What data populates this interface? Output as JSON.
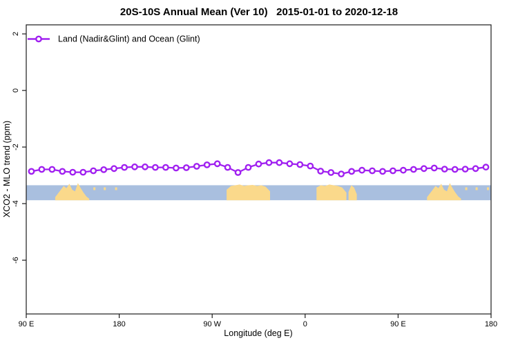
{
  "chart_data": {
    "type": "line",
    "title": "20S-10S Annual Mean (Ver 10)   2015-01-01 to 2020-12-18",
    "xlabel": "Longitude (deg E)",
    "ylabel": "XCO2 - MLO trend (ppm)",
    "grid": false,
    "xlim": [
      90,
      540
    ],
    "ylim": [
      -7.9,
      2.32
    ],
    "x_axis": {
      "note": "longitude wraps eastward from 90E around the globe to 180",
      "ticks": [
        {
          "value": 90,
          "label": "90 E"
        },
        {
          "value": 180,
          "label": "180"
        },
        {
          "value": 270,
          "label": "90 W"
        },
        {
          "value": 360,
          "label": "0"
        },
        {
          "value": 450,
          "label": "90 E"
        },
        {
          "value": 540,
          "label": "180"
        }
      ]
    },
    "y_axis": {
      "ticks": [
        {
          "value": 2,
          "label": "2"
        },
        {
          "value": 0,
          "label": "0"
        },
        {
          "value": -2,
          "label": "-2"
        },
        {
          "value": -4,
          "label": "-4"
        },
        {
          "value": -6,
          "label": "-6"
        }
      ]
    },
    "legend": {
      "label": "Land (Nadir&Glint) and Ocean (Glint)",
      "position": "top-left"
    },
    "series": [
      {
        "name": "Land (Nadir&Glint) and Ocean (Glint)",
        "color": "#A020F0",
        "marker": "open-circle",
        "x": [
          95,
          105,
          115,
          125,
          135,
          145,
          155,
          165,
          175,
          185,
          195,
          205,
          215,
          225,
          235,
          245,
          255,
          265,
          275,
          285,
          295,
          305,
          315,
          325,
          335,
          345,
          355,
          365,
          375,
          385,
          395,
          405,
          415,
          425,
          435,
          445,
          455,
          465,
          475,
          485,
          495,
          505,
          515,
          525,
          535
        ],
        "y": [
          -2.86,
          -2.79,
          -2.79,
          -2.86,
          -2.89,
          -2.89,
          -2.84,
          -2.8,
          -2.76,
          -2.72,
          -2.7,
          -2.7,
          -2.72,
          -2.72,
          -2.74,
          -2.73,
          -2.68,
          -2.63,
          -2.59,
          -2.72,
          -2.9,
          -2.72,
          -2.6,
          -2.55,
          -2.55,
          -2.59,
          -2.62,
          -2.67,
          -2.85,
          -2.9,
          -2.95,
          -2.86,
          -2.82,
          -2.84,
          -2.86,
          -2.84,
          -2.82,
          -2.79,
          -2.76,
          -2.74,
          -2.78,
          -2.79,
          -2.78,
          -2.76,
          -2.71
        ]
      }
    ],
    "map_strip": {
      "description": "land/ocean mask band for latitude zone 20S-10S",
      "ocean_color": "#A9BFDF",
      "land_color": "#FAD98B",
      "y_top": -3.35,
      "y_bottom": -3.88,
      "land_patches": [
        {
          "name": "australia-west",
          "from": 118,
          "to": 151,
          "profile": [
            0.2,
            0.45,
            0.7,
            0.95,
            0.8,
            1.1,
            0.7,
            0.6,
            1.15,
            0.8,
            0.5,
            0.25,
            0.1
          ]
        },
        {
          "name": "south-america",
          "from": 284,
          "to": 326,
          "profile": [
            0.7,
            0.95,
            1.0,
            1.05,
            0.95,
            1.0,
            1.02,
            0.95,
            1.0,
            0.9,
            0.6
          ]
        },
        {
          "name": "africa",
          "from": 371,
          "to": 400,
          "profile": [
            0.85,
            1.0,
            0.95,
            1.05,
            1.0,
            0.95,
            0.85,
            0.5
          ]
        },
        {
          "name": "madagascar",
          "from": 402,
          "to": 410,
          "profile": [
            0.55,
            1.0,
            0.85,
            0.4
          ]
        },
        {
          "name": "australia-east",
          "from": 478,
          "to": 511,
          "profile": [
            0.2,
            0.45,
            0.7,
            0.95,
            0.8,
            1.1,
            0.7,
            0.6,
            1.15,
            0.8,
            0.5,
            0.25,
            0.1
          ]
        }
      ],
      "island_specks": [
        156,
        166,
        177,
        516,
        526,
        537
      ]
    }
  }
}
